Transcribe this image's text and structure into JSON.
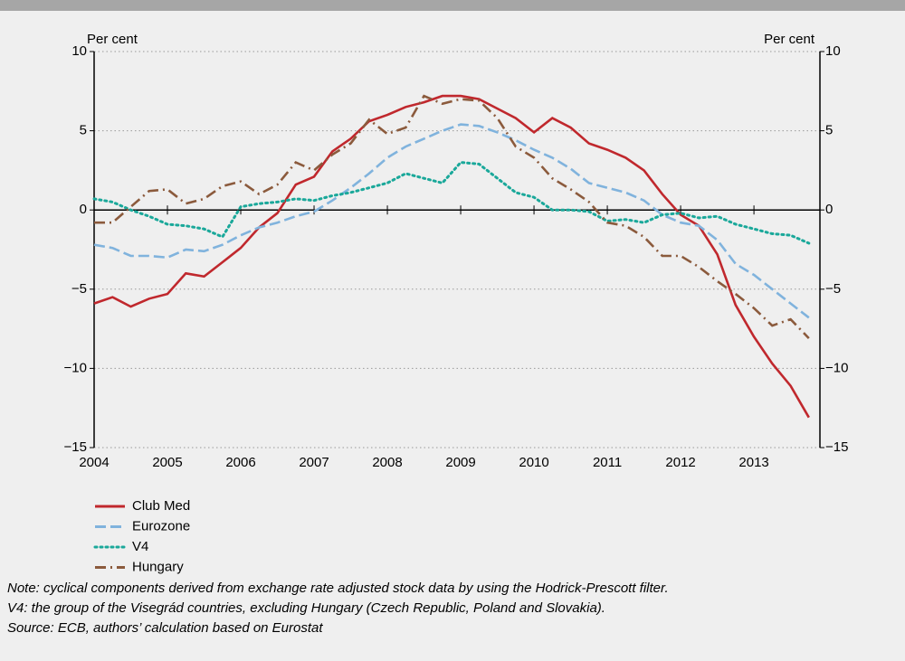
{
  "chart_data": {
    "type": "line",
    "y_label_left": "Per cent",
    "y_label_right": "Per cent",
    "x": [
      2004,
      2004.25,
      2004.5,
      2004.75,
      2005,
      2005.25,
      2005.5,
      2005.75,
      2006,
      2006.25,
      2006.5,
      2006.75,
      2007,
      2007.25,
      2007.5,
      2007.75,
      2008,
      2008.25,
      2008.5,
      2008.75,
      2009,
      2009.25,
      2009.5,
      2009.75,
      2010,
      2010.25,
      2010.5,
      2010.75,
      2011,
      2011.25,
      2011.5,
      2011.75,
      2012,
      2012.25,
      2012.5,
      2012.75,
      2013,
      2013.25,
      2013.5,
      2013.75
    ],
    "xlim": [
      2004,
      2013.9
    ],
    "xticks": [
      2004,
      2005,
      2006,
      2007,
      2008,
      2009,
      2010,
      2011,
      2012,
      2013
    ],
    "ylim": [
      -15,
      10
    ],
    "yticks": [
      {
        "value": -15,
        "label": "−15"
      },
      {
        "value": -10,
        "label": "−10"
      },
      {
        "value": -5,
        "label": "−5"
      },
      0,
      5,
      10
    ],
    "y2lim": [
      -15,
      10
    ],
    "y2ticks": [
      {
        "value": -15,
        "label": "−15"
      },
      {
        "value": -10,
        "label": "−10"
      },
      {
        "value": -5,
        "label": "−5"
      },
      0,
      5,
      10
    ],
    "grid": true,
    "legend": "bottom-left",
    "series": [
      {
        "name": "Club Med",
        "color": "#c0282d",
        "dash": "solid",
        "values": [
          -5.9,
          -5.5,
          -6.1,
          -5.6,
          -5.3,
          -4.0,
          -4.2,
          -3.3,
          -2.4,
          -1.1,
          -0.2,
          1.6,
          2.1,
          3.7,
          4.5,
          5.6,
          6.0,
          6.5,
          6.8,
          7.2,
          7.2,
          7.0,
          6.4,
          5.8,
          4.9,
          5.8,
          5.2,
          4.2,
          3.8,
          3.3,
          2.5,
          1.0,
          -0.3,
          -1.0,
          -2.8,
          -6.0,
          -8.0,
          -9.7,
          -11.1,
          -13.1
        ]
      },
      {
        "name": "Eurozone",
        "color": "#80b3dd",
        "dash": "dashed",
        "values": [
          -2.2,
          -2.4,
          -2.9,
          -2.9,
          -3.0,
          -2.5,
          -2.6,
          -2.2,
          -1.6,
          -1.1,
          -0.8,
          -0.4,
          -0.1,
          0.6,
          1.4,
          2.3,
          3.3,
          4.0,
          4.5,
          5.0,
          5.4,
          5.3,
          4.9,
          4.4,
          3.8,
          3.3,
          2.6,
          1.7,
          1.4,
          1.1,
          0.6,
          -0.3,
          -0.8,
          -1.0,
          -1.9,
          -3.4,
          -4.1,
          -5.0,
          -5.9,
          -6.8
        ]
      },
      {
        "name": "V4",
        "color": "#1aa89a",
        "dash": "dotted",
        "values": [
          0.7,
          0.5,
          0.0,
          -0.4,
          -0.9,
          -1.0,
          -1.2,
          -1.7,
          0.2,
          0.4,
          0.5,
          0.7,
          0.6,
          0.9,
          1.1,
          1.4,
          1.7,
          2.3,
          2.0,
          1.7,
          3.0,
          2.9,
          2.0,
          1.1,
          0.8,
          0.0,
          0.0,
          -0.1,
          -0.7,
          -0.6,
          -0.8,
          -0.3,
          -0.2,
          -0.5,
          -0.4,
          -0.9,
          -1.2,
          -1.5,
          -1.6,
          -2.1
        ]
      },
      {
        "name": "Hungary",
        "color": "#8b5a3c",
        "dash": "dashdot",
        "values": [
          -0.8,
          -0.8,
          0.2,
          1.2,
          1.3,
          0.4,
          0.7,
          1.5,
          1.8,
          1.0,
          1.6,
          3.0,
          2.5,
          3.5,
          4.2,
          5.7,
          4.8,
          5.2,
          7.2,
          6.7,
          7.0,
          6.9,
          5.8,
          4.0,
          3.3,
          2.0,
          1.3,
          0.5,
          -0.8,
          -1.0,
          -1.7,
          -2.9,
          -2.9,
          -3.6,
          -4.5,
          -5.3,
          -6.2,
          -7.3,
          -6.9,
          -8.1
        ]
      }
    ],
    "notes": [
      "Note: cyclical components derived from exchange rate adjusted stock data by using the Hodrick-Prescott filter.",
      "V4: the group of the Visegrád countries, excluding Hungary (Czech Republic, Poland and Slovakia).",
      "Source: ECB, authors’ calculation based on Eurostat"
    ]
  }
}
